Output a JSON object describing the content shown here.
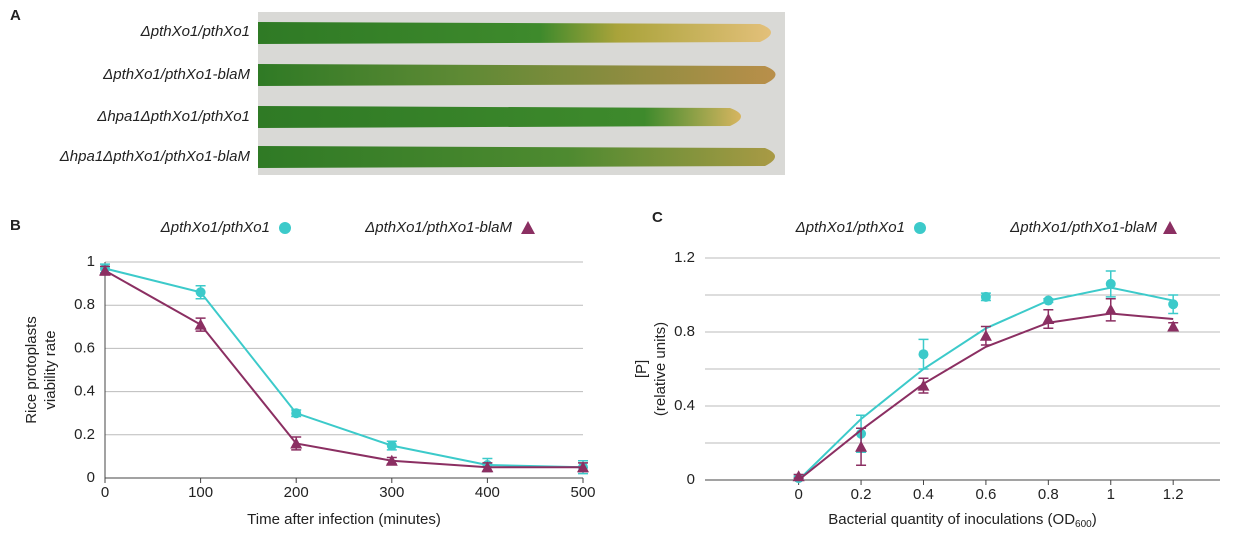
{
  "panel_a": {
    "panel": "A",
    "leaf_labels": [
      "ΔpthXo1/pthXo1",
      "ΔpthXo1/pthXo1-blaM",
      "Δhpa1ΔpthXo1/pthXo1",
      "Δhpa1ΔpthXo1/pthXo1-blaM"
    ]
  },
  "chart_data": [
    {
      "type": "line",
      "panel": "B",
      "ylabel": [
        "Rice protoplasts",
        "viability rate"
      ],
      "xlabel": "Time after infection (minutes)",
      "x": [
        0,
        100,
        200,
        300,
        400,
        500
      ],
      "xlim": [
        0,
        500
      ],
      "xticks": [
        0,
        100,
        200,
        300,
        400,
        500
      ],
      "ylim": [
        0,
        1
      ],
      "yticks": [
        0,
        0.2,
        0.4,
        0.6,
        0.8,
        1
      ],
      "grid": true,
      "series": [
        {
          "name": "ΔpthXo1/pthXo1",
          "color": "#3ccaca",
          "marker": "circle",
          "values": [
            0.97,
            0.86,
            0.3,
            0.15,
            0.06,
            0.05
          ],
          "errors": [
            0.02,
            0.03,
            0.015,
            0.02,
            0.03,
            0.03
          ]
        },
        {
          "name": "ΔpthXo1/pthXo1-blaM",
          "color": "#8b2f62",
          "marker": "triangle",
          "values": [
            0.96,
            0.71,
            0.16,
            0.08,
            0.05,
            0.05
          ],
          "errors": [
            0.02,
            0.03,
            0.03,
            0.015,
            0.02,
            0.02
          ]
        }
      ]
    },
    {
      "type": "line",
      "panel": "C",
      "ylabel": [
        "[P]",
        "(relative units)"
      ],
      "xlabel": "Bacterial quantity of inoculations (OD",
      "xlabel_sub": "600",
      "xlabel_end": ")",
      "x": [
        0,
        0.2,
        0.4,
        0.6,
        0.8,
        1,
        1.2
      ],
      "xlim": [
        -0.3,
        1.35
      ],
      "xticks": [
        0,
        0.2,
        0.4,
        0.6,
        0.8,
        1,
        1.2
      ],
      "ylim": [
        0,
        1.2
      ],
      "yticks": [
        0,
        0.4,
        0.8,
        1.2
      ],
      "minor_yticks": [
        0.2,
        0.6,
        1.0
      ],
      "grid": true,
      "series": [
        {
          "name": "ΔpthXo1/pthXo1",
          "color": "#3ccaca",
          "marker": "circle",
          "values": [
            0.01,
            0.25,
            0.68,
            0.99,
            0.97,
            1.06,
            0.95
          ],
          "errors": [
            0.01,
            0.1,
            0.08,
            0.02,
            0.01,
            0.07,
            0.05
          ],
          "fit": [
            0,
            0.33,
            0.6,
            0.82,
            0.97,
            1.04,
            0.97
          ]
        },
        {
          "name": "ΔpthXo1/pthXo1-blaM",
          "color": "#8b2f62",
          "marker": "triangle",
          "values": [
            0.02,
            0.18,
            0.51,
            0.78,
            0.87,
            0.92,
            0.83
          ],
          "errors": [
            0.01,
            0.1,
            0.04,
            0.05,
            0.05,
            0.06,
            0.02
          ],
          "fit": [
            0,
            0.27,
            0.52,
            0.72,
            0.85,
            0.9,
            0.87
          ]
        }
      ]
    }
  ]
}
